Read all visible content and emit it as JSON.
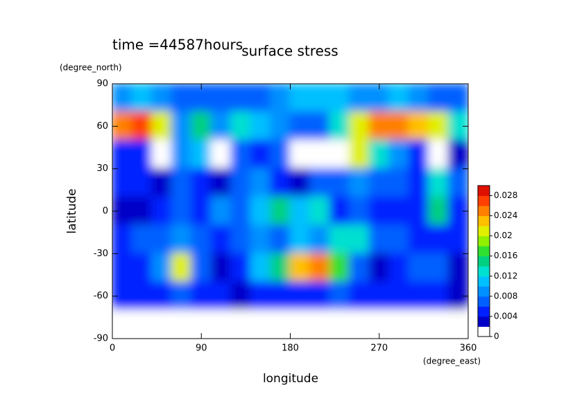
{
  "chart_data": {
    "type": "contour",
    "title": "surface stress",
    "subtitle": "time =44587hours",
    "xlabel": "longitude",
    "xunit": "(degree_east)",
    "ylabel": "latitude",
    "yunit": "(degree_north)",
    "xlim": [
      0,
      360
    ],
    "xticks": [
      0,
      90,
      180,
      270,
      360
    ],
    "ylim": [
      -90,
      90
    ],
    "yticks": [
      -90,
      -60,
      -30,
      0,
      30,
      60,
      90
    ],
    "x": [
      10,
      30,
      50,
      70,
      90,
      110,
      130,
      150,
      170,
      190,
      210,
      230,
      250,
      270,
      290,
      310,
      330,
      350
    ],
    "y": [
      80,
      60,
      40,
      20,
      0,
      -20,
      -40,
      -60,
      -80
    ],
    "z": [
      [
        0.008,
        0.01,
        0.008,
        0.006,
        0.006,
        0.006,
        0.006,
        0.006,
        0.008,
        0.01,
        0.01,
        0.01,
        0.008,
        0.008,
        0.01,
        0.008,
        0.006,
        0.006
      ],
      [
        0.024,
        0.026,
        0.02,
        0.008,
        0.014,
        0.008,
        0.012,
        0.01,
        0.008,
        0.006,
        0.006,
        0.012,
        0.02,
        0.024,
        0.024,
        0.022,
        0.02,
        0.012
      ],
      [
        0.004,
        0.004,
        0,
        0.008,
        0.01,
        0,
        0.006,
        0.004,
        0.006,
        0,
        0,
        0,
        0.02,
        0.012,
        0.008,
        0.004,
        0,
        0.002
      ],
      [
        0.004,
        0.004,
        0.002,
        0.006,
        0.004,
        0.002,
        0.006,
        0.008,
        0.004,
        0.002,
        0.006,
        0.006,
        0.008,
        0.006,
        0.006,
        0.004,
        0.012,
        0.006
      ],
      [
        0.002,
        0.003,
        0.004,
        0.006,
        0.004,
        0.008,
        0.006,
        0.01,
        0.014,
        0.01,
        0.012,
        0.004,
        0.006,
        0.004,
        0.004,
        0.004,
        0.014,
        0.004
      ],
      [
        0.004,
        0.006,
        0.006,
        0.008,
        0.006,
        0.004,
        0.006,
        0.008,
        0.006,
        0.01,
        0.008,
        0.012,
        0.012,
        0.006,
        0.006,
        0.004,
        0.004,
        0.004
      ],
      [
        0.004,
        0.004,
        0.008,
        0.02,
        0.006,
        0.002,
        0.004,
        0.01,
        0.014,
        0.022,
        0.024,
        0.016,
        0.006,
        0.002,
        0.004,
        0.006,
        0.006,
        0.002
      ],
      [
        0.004,
        0.004,
        0.004,
        0.006,
        0.004,
        0.004,
        0.002,
        0.004,
        0.004,
        0.004,
        0.004,
        0.006,
        0.004,
        0.004,
        0.004,
        0.004,
        0.004,
        0.002
      ],
      [
        0,
        0,
        0,
        0,
        0,
        0,
        0,
        0,
        0,
        0,
        0,
        0,
        0,
        0,
        0,
        0,
        0,
        0
      ]
    ],
    "clim": [
      0,
      0.03
    ],
    "cticks": [
      0,
      0.004,
      0.008,
      0.012,
      0.016,
      0.02,
      0.024,
      0.028
    ],
    "colorscale": [
      "#ffffff",
      "#0000c8",
      "#0020ff",
      "#0060ff",
      "#0090ff",
      "#00c0ff",
      "#00e0d0",
      "#00d080",
      "#30e030",
      "#90f000",
      "#e0f000",
      "#ffc000",
      "#ff8000",
      "#ff4000",
      "#e01000"
    ]
  }
}
